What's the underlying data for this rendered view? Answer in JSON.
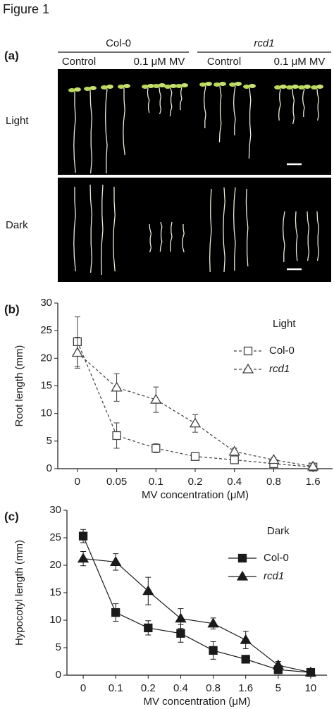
{
  "figure_title": "Figure 1",
  "panel_a": {
    "panel_label": "(a)",
    "genotypes": [
      "Col-0",
      "rcd1"
    ],
    "treatments": [
      "Control",
      "0.1 μM MV",
      "Control",
      "0.1 μM MV"
    ],
    "conditions": [
      "Light",
      "Dark"
    ]
  },
  "chart_data": [
    {
      "type": "line",
      "panel_label": "(b)",
      "x_label": "MV concentration (μM)",
      "y_label": "Root length (mm)",
      "categories": [
        "0",
        "0.05",
        "0.1",
        "0.2",
        "0.4",
        "0.8",
        "1.6"
      ],
      "legend_title": "Light",
      "legend": "upper right",
      "line_style": "dashed",
      "series": [
        {
          "name": "Col-0",
          "color": "#404040",
          "marker": "square",
          "filled": false,
          "name_style": "normal",
          "values": [
            23,
            6,
            3.7,
            2.2,
            1.6,
            0.9,
            0.3
          ],
          "errors": [
            4.5,
            2.3,
            0.8,
            0.6,
            0.6,
            0.5,
            0.3
          ]
        },
        {
          "name": "rcd1",
          "color": "#404040",
          "marker": "triangle",
          "filled": false,
          "name_style": "italic",
          "values": [
            21,
            14.7,
            12.5,
            8.2,
            3.1,
            1.6,
            0.4
          ],
          "errors": [
            2.8,
            2.5,
            2.3,
            1.6,
            0.6,
            0.4,
            0.3
          ]
        }
      ],
      "ylim": [
        0,
        30
      ],
      "yticks": [
        0,
        5,
        10,
        15,
        20,
        25,
        30
      ]
    },
    {
      "type": "line",
      "panel_label": "(c)",
      "x_label": "MV concentration (μM)",
      "y_label": "Hypocotyl length (mm)",
      "categories": [
        "0",
        "0.1",
        "0.2",
        "0.4",
        "0.8",
        "1.6",
        "5",
        "10"
      ],
      "legend_title": "Dark",
      "legend": "upper right",
      "line_style": "solid",
      "series": [
        {
          "name": "Col-0",
          "color": "#1a1a1a",
          "marker": "square",
          "filled": true,
          "name_style": "normal",
          "values": [
            25.3,
            11.4,
            8.6,
            7.6,
            4.5,
            2.9,
            1.0,
            0.5
          ],
          "errors": [
            1.2,
            1.6,
            1.3,
            1.6,
            1.6,
            0.5,
            0.7,
            0.3
          ]
        },
        {
          "name": "rcd1",
          "color": "#1a1a1a",
          "marker": "triangle",
          "filled": true,
          "name_style": "italic",
          "values": [
            21.2,
            20.6,
            15.3,
            10.3,
            9.4,
            6.4,
            1.8,
            0.5
          ],
          "errors": [
            1.3,
            1.5,
            2.5,
            1.8,
            1.0,
            1.6,
            0.7,
            0.3
          ]
        }
      ],
      "ylim": [
        0,
        30
      ],
      "yticks": [
        0,
        5,
        10,
        15,
        20,
        25,
        30
      ]
    }
  ]
}
